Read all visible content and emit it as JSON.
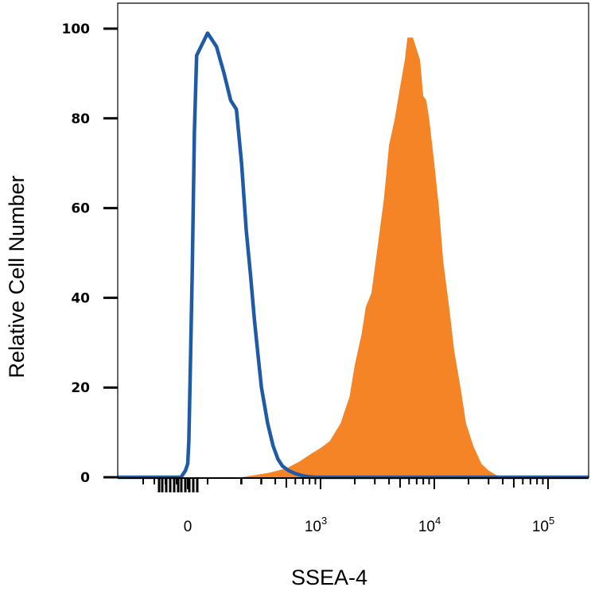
{
  "chart_data": {
    "type": "area",
    "title": "",
    "xlabel": "SSEA-4",
    "ylabel": "Relative Cell Number",
    "ylim": [
      0,
      100
    ],
    "x_scale": "biexponential",
    "grid": false,
    "legend": "none",
    "y_ticks": [
      {
        "value": 0,
        "label": "0"
      },
      {
        "value": 20,
        "label": "20"
      },
      {
        "value": 40,
        "label": "40"
      },
      {
        "value": 60,
        "label": "60"
      },
      {
        "value": 80,
        "label": "80"
      },
      {
        "value": 100,
        "label": "100"
      }
    ],
    "x_ticks": [
      {
        "value": 0,
        "base": "0",
        "exp": ""
      },
      {
        "value": 1000,
        "base": "10",
        "exp": "3"
      },
      {
        "value": 10000,
        "base": "10",
        "exp": "4"
      },
      {
        "value": 100000,
        "base": "10",
        "exp": "5"
      }
    ],
    "series": [
      {
        "color": "#F58426",
        "style": "filled",
        "x": [
          200,
          350,
          500,
          650,
          800,
          1000,
          1200,
          1500,
          1800,
          2000,
          2300,
          2500,
          2800,
          3200,
          3600,
          4000,
          4500,
          5000,
          5500,
          5800,
          6500,
          7500,
          8000,
          8500,
          9000,
          10000,
          11000,
          12000,
          13500,
          15000,
          17000,
          19000,
          22000,
          26000,
          30000,
          35000,
          45000
        ],
        "y": [
          0,
          1,
          2,
          3.5,
          5,
          6.5,
          8,
          12,
          18,
          25,
          32,
          38,
          41,
          52,
          62,
          74,
          80,
          87,
          93,
          98,
          98,
          93,
          85,
          84,
          80,
          70,
          60,
          48,
          38,
          28,
          20,
          12,
          7,
          3,
          1.5,
          0.5,
          0
        ]
      },
      {
        "color": "#1F5AA6",
        "style": "line",
        "x": [
          -60,
          -20,
          0,
          10,
          20,
          40,
          60,
          80,
          100,
          120,
          140,
          160,
          180,
          200,
          220,
          240,
          260,
          280,
          300,
          340,
          380,
          420,
          460,
          520,
          600,
          700,
          800,
          900
        ],
        "y": [
          0,
          1.5,
          3,
          8,
          20,
          45,
          77,
          94,
          99,
          96,
          90,
          84,
          82,
          70,
          55,
          45,
          35,
          27,
          20,
          12,
          7,
          4,
          2.5,
          1.5,
          0.8,
          0.3,
          0.1,
          0
        ]
      }
    ]
  }
}
